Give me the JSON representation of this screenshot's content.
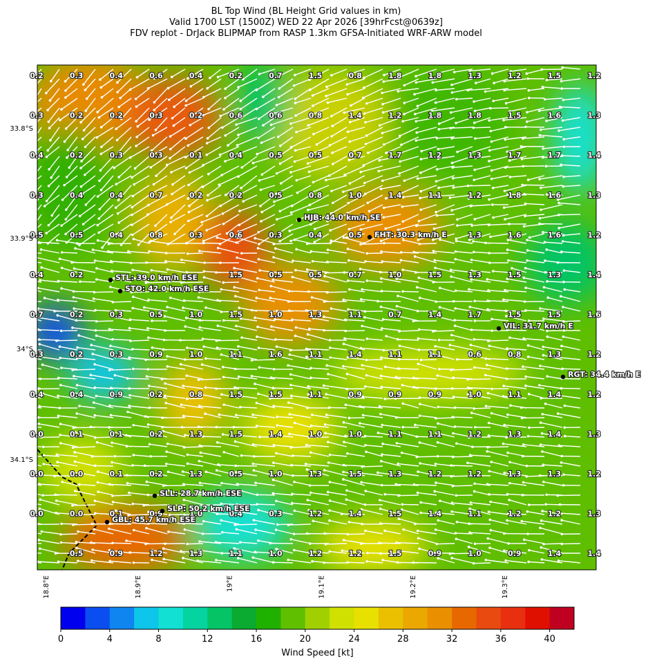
{
  "header": {
    "title_lines": [
      "BL Top Wind (BL Height Grid values in km)",
      "Valid 1700 LST (1500Z) WED 22 Apr 2026 [39hrFcst@0639z]",
      "FDV replot - DrJack BLIPMAP from RASP 1.3km GFSA-Initiated WRF-ARW model"
    ]
  },
  "map": {
    "grid_values": [
      [
        "0.2",
        "0.3",
        "0.4",
        "0.6",
        "0.4",
        "0.2",
        "0.7",
        "1.5",
        "0.8",
        "1.8",
        "1.8",
        "1.3",
        "1.2",
        "1.5",
        "1.2"
      ],
      [
        "0.3",
        "0.2",
        "0.2",
        "0.3",
        "0.2",
        "0.6",
        "0.6",
        "0.8",
        "1.4",
        "1.2",
        "1.8",
        "1.8",
        "1.5",
        "1.6",
        "1.3"
      ],
      [
        "0.4",
        "0.2",
        "0.3",
        "0.3",
        "0.1",
        "0.4",
        "0.5",
        "0.5",
        "0.7",
        "1.7",
        "1.2",
        "1.3",
        "1.7",
        "1.7",
        "1.4"
      ],
      [
        "0.3",
        "0.4",
        "0.4",
        "0.7",
        "0.2",
        "0.2",
        "0.5",
        "0.8",
        "1.0",
        "1.4",
        "1.1",
        "1.2",
        "1.8",
        "1.6",
        "1.3"
      ],
      [
        "0.5",
        "0.5",
        "0.4",
        "0.8",
        "0.3",
        "0.6",
        "0.3",
        "0.4",
        "0.5",
        null,
        null,
        "1.3",
        "1.6",
        "1.6",
        "1.2"
      ],
      [
        "0.4",
        "0.2",
        null,
        null,
        null,
        "1.5",
        "0.5",
        "0.5",
        "0.7",
        "1.0",
        "1.5",
        "1.3",
        "1.5",
        "1.3",
        "1.4"
      ],
      [
        "0.7",
        "0.2",
        "0.3",
        "0.5",
        "1.0",
        "1.5",
        "1.0",
        "1.3",
        "1.1",
        "0.7",
        "1.4",
        "1.7",
        "1.5",
        "1.5",
        "1.6"
      ],
      [
        "0.3",
        "0.2",
        "0.3",
        "0.9",
        "1.0",
        "1.1",
        "1.6",
        "1.1",
        "1.4",
        "1.1",
        "1.1",
        "0.6",
        "0.8",
        "1.3",
        "1.2"
      ],
      [
        "0.4",
        "0.4",
        "0.9",
        "0.2",
        "0.8",
        "1.5",
        "1.5",
        "1.1",
        "0.9",
        "0.9",
        "0.9",
        "1.0",
        "1.1",
        "1.4",
        "1.2"
      ],
      [
        "0.0",
        "0.1",
        "0.1",
        "0.2",
        "1.3",
        "1.5",
        "1.4",
        "1.0",
        "1.0",
        "1.1",
        "1.1",
        "1.2",
        "1.3",
        "1.4",
        "1.3"
      ],
      [
        "0.0",
        "0.0",
        "0.1",
        "0.2",
        "1.3",
        "0.5",
        "1.0",
        "1.3",
        "1.5",
        "1.3",
        "1.2",
        "1.2",
        "1.3",
        "1.3",
        "1.2"
      ],
      [
        "0.0",
        "0.0",
        "0.1",
        "0.9",
        "1.0",
        "0.4",
        "0.3",
        "1.2",
        "1.4",
        "1.5",
        "1.4",
        "1.1",
        "1.2",
        "1.2",
        "1.3"
      ],
      [
        null,
        "0.5",
        "0.9",
        "1.2",
        "1.3",
        "1.1",
        "1.0",
        "1.2",
        "1.2",
        "1.5",
        "0.9",
        "1.0",
        "0.9",
        "1.4",
        "1.4"
      ]
    ],
    "stations": [
      "HJB: 44.0 km/h SE",
      "FHT: 30.3 km/h E",
      "STL: 39.0 km/h ESE",
      "STO: 42.0 km/h ESE",
      "VIL: 31.7 km/h E",
      "RGT: 34.4 km/h E",
      "SLL: 28.7 km/h ESE",
      "SLP: 50.2 km/h ESE",
      "GBL: 45.7 km/h ESE"
    ],
    "lat_labels": [
      "33.8°S",
      "33.9°S",
      "34°S",
      "34.1°S"
    ],
    "lon_labels": [
      "18.8°E",
      "18.9°E",
      "19°E",
      "19.1°E",
      "19.2°E",
      "19.3°E"
    ]
  },
  "colorbar": {
    "label": "Wind Speed [kt]",
    "lim": [
      0,
      42
    ],
    "ticks": [
      0,
      4,
      8,
      12,
      16,
      20,
      24,
      28,
      32,
      36,
      40
    ],
    "colors": [
      "#0000ee",
      "#0a4ef0",
      "#0f85ef",
      "#0ec5ea",
      "#12e0d2",
      "#05d3a0",
      "#04c466",
      "#0aab30",
      "#20b000",
      "#60c000",
      "#a0d000",
      "#d0e000",
      "#e8e000",
      "#eac000",
      "#eaa800",
      "#ea9000",
      "#e86800",
      "#e84a10",
      "#e83010",
      "#e01000",
      "#c00020"
    ]
  }
}
